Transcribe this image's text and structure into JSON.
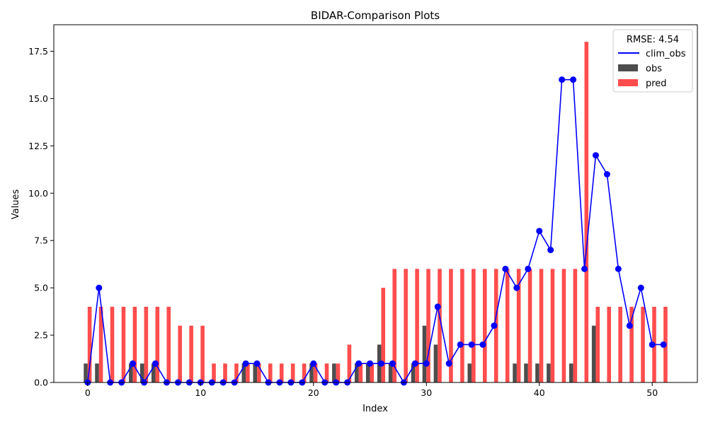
{
  "chart_data": {
    "type": "bar",
    "title": "BIDAR-Comparison Plots",
    "xlabel": "Index",
    "ylabel": "Values",
    "xlim": [
      -3,
      54
    ],
    "ylim": [
      0,
      18.9
    ],
    "x_ticks": [
      0,
      10,
      20,
      30,
      40,
      50
    ],
    "y_ticks": [
      0.0,
      2.5,
      5.0,
      7.5,
      10.0,
      12.5,
      15.0,
      17.5
    ],
    "x_tick_labels": [
      "0",
      "10",
      "20",
      "30",
      "40",
      "50"
    ],
    "y_tick_labels": [
      "0.0",
      "2.5",
      "5.0",
      "7.5",
      "10.0",
      "12.5",
      "15.0",
      "17.5"
    ],
    "legend": {
      "title": "RMSE: 4.54",
      "placement": "upper-right",
      "entries": [
        {
          "label": "clim_obs",
          "kind": "line",
          "color": "#0000ff"
        },
        {
          "label": "obs",
          "kind": "bar",
          "color": "#4d4d4d"
        },
        {
          "label": "pred",
          "kind": "bar",
          "color": "#ff4d4d"
        }
      ]
    },
    "grid": false,
    "x": [
      0,
      1,
      2,
      3,
      4,
      5,
      6,
      7,
      8,
      9,
      10,
      11,
      12,
      13,
      14,
      15,
      16,
      17,
      18,
      19,
      20,
      21,
      22,
      23,
      24,
      25,
      26,
      27,
      28,
      29,
      30,
      31,
      32,
      33,
      34,
      35,
      36,
      37,
      38,
      39,
      40,
      41,
      42,
      43,
      44,
      45,
      46,
      47,
      48,
      49,
      50,
      51
    ],
    "series": [
      {
        "name": "obs",
        "type": "bar",
        "color": "#4d4d4d",
        "values": [
          1,
          1,
          0,
          0,
          1,
          1,
          1,
          0,
          0,
          0,
          0,
          0,
          0,
          0,
          1,
          1,
          0,
          0,
          0,
          0,
          1,
          0,
          1,
          0,
          1,
          1,
          2,
          1,
          0,
          1,
          3,
          2,
          0,
          0,
          1,
          0,
          0,
          0,
          1,
          1,
          1,
          1,
          0,
          1,
          0,
          3,
          0,
          0,
          0,
          0,
          0,
          0
        ]
      },
      {
        "name": "pred",
        "type": "bar",
        "color": "#ff4d4d",
        "values": [
          4,
          4,
          4,
          4,
          4,
          4,
          4,
          4,
          3,
          3,
          3,
          1,
          1,
          1,
          1,
          1,
          1,
          1,
          1,
          1,
          1,
          1,
          1,
          2,
          1,
          1,
          5,
          6,
          6,
          6,
          6,
          6,
          6,
          6,
          6,
          6,
          6,
          6,
          6,
          6,
          6,
          6,
          6,
          6,
          18,
          4,
          4,
          4,
          4,
          4,
          4,
          4
        ]
      },
      {
        "name": "clim_obs",
        "type": "line",
        "color": "#0000ff",
        "values": [
          0,
          5,
          0,
          0,
          1,
          0,
          1,
          0,
          0,
          0,
          0,
          0,
          0,
          0,
          1,
          1,
          0,
          0,
          0,
          0,
          1,
          0,
          0,
          0,
          1,
          1,
          1,
          1,
          0,
          1,
          1,
          4,
          1,
          2,
          2,
          2,
          3,
          6,
          5,
          6,
          8,
          7,
          16,
          16,
          6,
          12,
          11,
          6,
          3,
          5,
          2,
          2
        ]
      }
    ]
  }
}
